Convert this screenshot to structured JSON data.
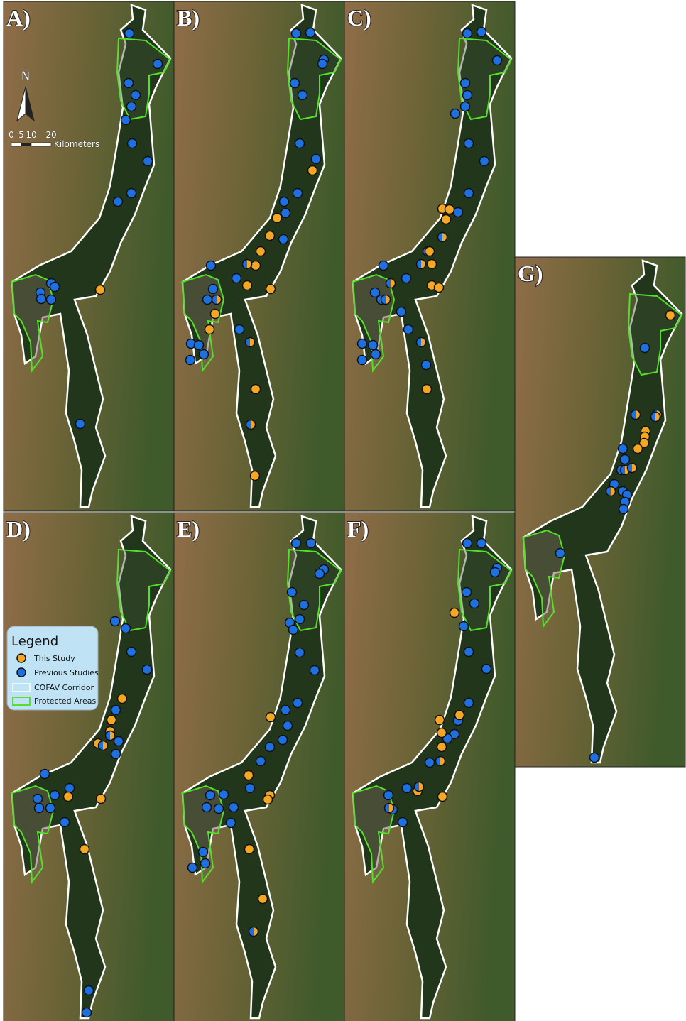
{
  "panels": [
    {
      "label": "A)"
    },
    {
      "label": "B)"
    },
    {
      "label": "C)"
    },
    {
      "label": "D)"
    },
    {
      "label": "E)"
    },
    {
      "label": "F)"
    },
    {
      "label": "G)"
    }
  ],
  "north_arrow": "N",
  "scale_bar": {
    "ticks": [
      "0",
      "5",
      "10",
      "20"
    ],
    "unit": "Kilometers"
  },
  "legend": {
    "title": "Legend",
    "items": [
      {
        "label": "This Study"
      },
      {
        "label": "Previous Studies"
      },
      {
        "label": "COFAV Corridor"
      },
      {
        "label": "Protected Areas"
      }
    ]
  }
}
